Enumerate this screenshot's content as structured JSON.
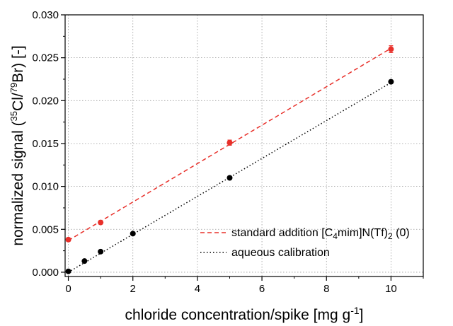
{
  "chart_data": {
    "type": "scatter",
    "xlabel": {
      "main": "chloride concentration/spike [mg g",
      "sup": "-1",
      "tail": "]"
    },
    "ylabel": {
      "pre": "normalized signal (",
      "sup1": "35",
      "mid": "Cl/",
      "sup2": "79",
      "post": "Br) [-]"
    },
    "xlim": [
      -0.1,
      11.0
    ],
    "ylim": [
      -0.0005,
      0.03
    ],
    "x_ticks": [
      "0",
      "2",
      "4",
      "6",
      "8",
      "10"
    ],
    "y_ticks": [
      "0.000",
      "0.005",
      "0.010",
      "0.015",
      "0.020",
      "0.025",
      "0.030"
    ],
    "grid": true,
    "legend_position": "lower-right",
    "series": [
      {
        "name": {
          "pre": "standard addition [C",
          "sub": "4",
          "mid": "mim]N(Tf)",
          "sub2": "2",
          "post": " (0)"
        },
        "color": "#e8302a",
        "line_style": "dashed",
        "fit": [
          [
            0,
            0.0037
          ],
          [
            10,
            0.0261
          ]
        ],
        "points": [
          {
            "x": 0,
            "y": 0.0038,
            "err": 0.0002
          },
          {
            "x": 1,
            "y": 0.0058,
            "err": 0.0002
          },
          {
            "x": 5,
            "y": 0.0151,
            "err": 0.0003
          },
          {
            "x": 10,
            "y": 0.026,
            "err": 0.0004
          }
        ]
      },
      {
        "name": "aqueous calibration",
        "color": "#000000",
        "line_style": "dotted",
        "fit": [
          [
            0,
            0.0
          ],
          [
            10,
            0.0221
          ]
        ],
        "points": [
          {
            "x": 0,
            "y": 0.0001
          },
          {
            "x": 0.5,
            "y": 0.0013
          },
          {
            "x": 1,
            "y": 0.0024
          },
          {
            "x": 2,
            "y": 0.0045
          },
          {
            "x": 5,
            "y": 0.011
          },
          {
            "x": 10,
            "y": 0.0222
          }
        ]
      }
    ]
  }
}
